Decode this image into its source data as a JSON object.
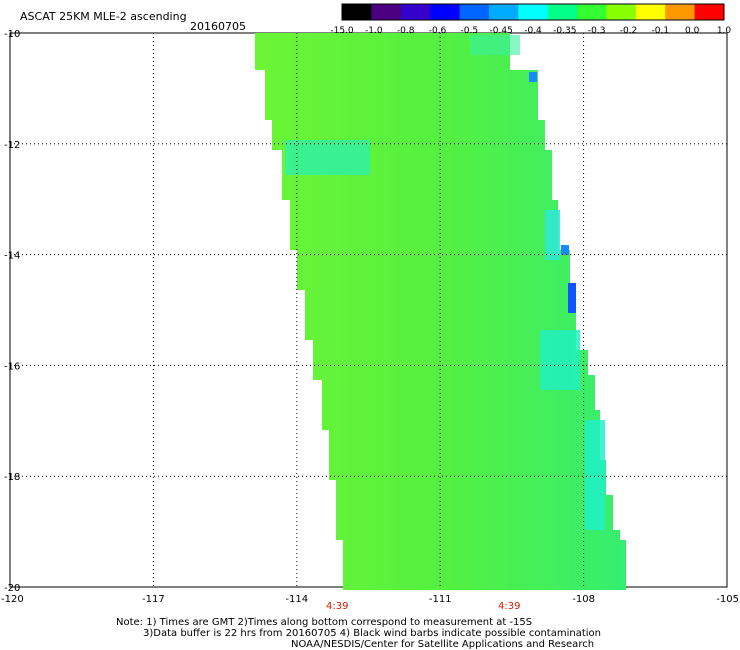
{
  "header": {
    "title": "ASCAT 25KM MLE-2 ascending",
    "date": "20160705"
  },
  "colorbar": {
    "labels": [
      "-15.0",
      "-1.0",
      "-0.8",
      "-0.6",
      "-0.5",
      "-0.45",
      "-0.4",
      "-0.35",
      "-0.3",
      "-0.2",
      "-0.1",
      "0.0",
      "1.0"
    ],
    "colors": [
      "#000000",
      "#4b0082",
      "#3300cc",
      "#0000ff",
      "#0066ff",
      "#00aaff",
      "#00ffff",
      "#00ff88",
      "#33ff33",
      "#88ff00",
      "#ffff00",
      "#ff9900",
      "#ff0000"
    ]
  },
  "map": {
    "y_labels": [
      "-10",
      "-12",
      "-14",
      "-16",
      "-18",
      "-20"
    ],
    "x_labels": [
      "-120",
      "-117",
      "-114",
      "-111",
      "-108",
      "-105"
    ],
    "lat_range": [
      -20,
      -10
    ],
    "lon_range": [
      -120,
      -105
    ],
    "swath_color": "#5cf53a",
    "time_labels": [
      "4:39",
      "4:39"
    ],
    "time_label_color": "#cc2200"
  },
  "notes": {
    "line1": "Note: 1) Times are GMT 2)Times along bottom correspond to measurement at -15S",
    "line2": "3)Data buffer is 22 hrs from 20160705 4) Black wind barbs indicate possible contamination",
    "line3": "NOAA/NESDIS/Center for Satellite Applications and Research"
  }
}
